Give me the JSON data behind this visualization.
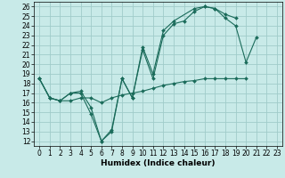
{
  "bg_color": "#c8eae8",
  "grid_color": "#a0ccca",
  "line_color": "#1a6b5a",
  "xlabel": "Humidex (Indice chaleur)",
  "xlim": [
    -0.5,
    23.5
  ],
  "ylim": [
    11.5,
    26.5
  ],
  "xticks": [
    0,
    1,
    2,
    3,
    4,
    5,
    6,
    7,
    8,
    9,
    10,
    11,
    12,
    13,
    14,
    15,
    16,
    17,
    18,
    19,
    20,
    21,
    22,
    23
  ],
  "yticks": [
    12,
    13,
    14,
    15,
    16,
    17,
    18,
    19,
    20,
    21,
    22,
    23,
    24,
    25,
    26
  ],
  "series": [
    {
      "x": [
        0,
        1,
        2,
        3,
        4,
        5,
        6,
        7,
        8,
        9,
        10,
        11,
        12,
        13,
        14,
        15,
        16,
        17,
        18,
        19,
        20,
        21,
        22,
        23
      ],
      "y": [
        18.5,
        16.5,
        16.2,
        17.0,
        17.2,
        15.5,
        12.0,
        13.2,
        18.5,
        16.5,
        21.5,
        18.5,
        23.0,
        24.2,
        24.5,
        25.5,
        26.0,
        25.8,
        24.8,
        24.0,
        20.2,
        22.8,
        null,
        null
      ]
    },
    {
      "x": [
        0,
        1,
        2,
        3,
        4,
        5,
        6,
        7,
        8,
        9,
        10,
        11,
        12,
        13,
        14,
        15,
        16,
        17,
        18,
        19,
        20,
        21,
        22,
        23
      ],
      "y": [
        18.5,
        16.5,
        16.2,
        17.0,
        17.0,
        14.8,
        12.0,
        13.0,
        18.5,
        16.5,
        21.8,
        19.0,
        23.5,
        24.5,
        null,
        25.8,
        26.0,
        25.8,
        25.2,
        24.8,
        null,
        null,
        null,
        null
      ]
    },
    {
      "x": [
        0,
        1,
        2,
        3,
        4,
        5,
        6,
        7,
        8,
        9,
        10,
        11,
        12,
        13,
        14,
        15,
        16,
        17,
        18,
        19,
        20,
        21,
        22,
        23
      ],
      "y": [
        18.5,
        16.5,
        16.2,
        16.2,
        16.5,
        16.5,
        16.0,
        16.5,
        16.8,
        17.0,
        17.2,
        17.5,
        17.8,
        18.0,
        18.2,
        18.3,
        18.5,
        18.5,
        18.5,
        18.5,
        18.5,
        null,
        null,
        null
      ]
    }
  ]
}
